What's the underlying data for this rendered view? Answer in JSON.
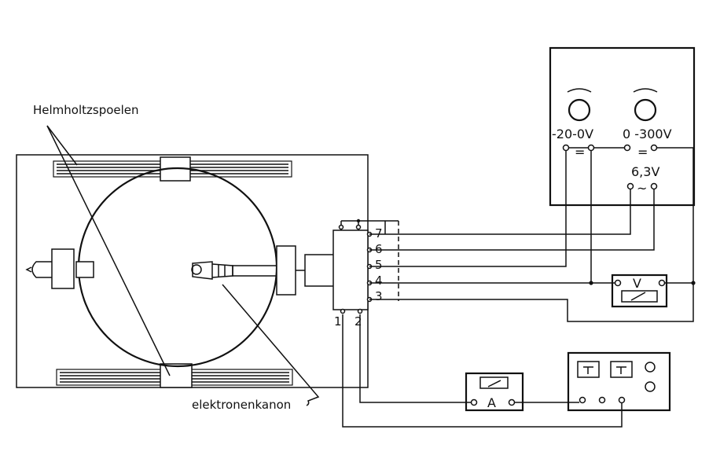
{
  "labels": {
    "helmholtz_coils": "Helmholtzspoelen",
    "electron_gun": "elektronenkanon"
  },
  "socket_pins": [
    "7",
    "6",
    "5",
    "4",
    "3",
    "1",
    "2"
  ],
  "power_supply": {
    "range_low": "-20-0V",
    "range_high": "0 -300V",
    "filament": "6,3V",
    "dc_symbol": "=",
    "ac_symbol": "~"
  },
  "meters": {
    "voltmeter": "V",
    "ammeter": "A"
  },
  "colors": {
    "ink": "#111111",
    "paper": "#ffffff"
  }
}
